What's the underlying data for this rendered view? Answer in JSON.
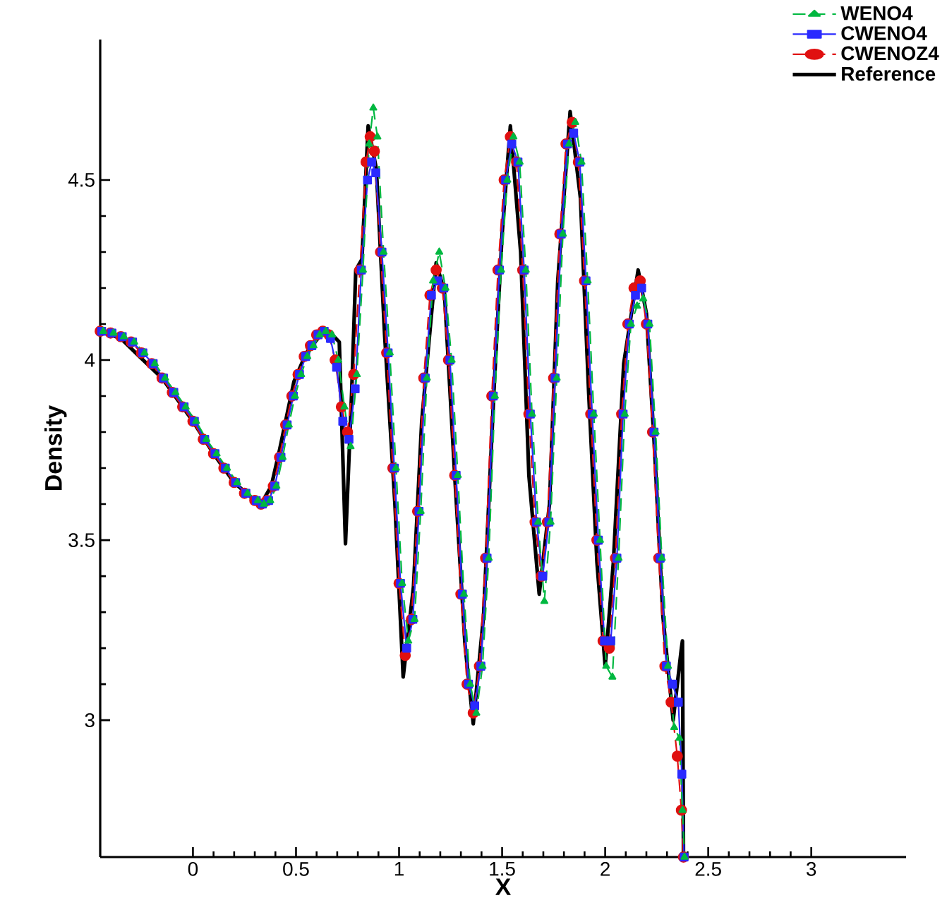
{
  "chart_data": {
    "type": "line",
    "xlabel": "X",
    "ylabel": "Density",
    "xlim": [
      -0.45,
      3.46
    ],
    "ylim": [
      2.62,
      4.89
    ],
    "xticks": [
      0,
      0.5,
      1,
      1.5,
      2,
      2.5,
      3
    ],
    "yticks": [
      3,
      3.5,
      4,
      4.5
    ],
    "grid": false,
    "legend": "top right",
    "x": [
      -0.45,
      -0.4,
      -0.35,
      -0.3,
      -0.25,
      -0.2,
      -0.15,
      -0.1,
      -0.05,
      0,
      0.05,
      0.1,
      0.15,
      0.2,
      0.25,
      0.3,
      0.33,
      0.36,
      0.39,
      0.42,
      0.45,
      0.48,
      0.51,
      0.54,
      0.57,
      0.6,
      0.63,
      0.66,
      0.69,
      0.72,
      0.75,
      0.78,
      0.81,
      0.84,
      0.86,
      0.88,
      0.91,
      0.94,
      0.97,
      1.0,
      1.03,
      1.06,
      1.09,
      1.12,
      1.15,
      1.18,
      1.21,
      1.24,
      1.27,
      1.3,
      1.33,
      1.36,
      1.39,
      1.42,
      1.45,
      1.48,
      1.51,
      1.54,
      1.57,
      1.6,
      1.63,
      1.66,
      1.69,
      1.72,
      1.75,
      1.78,
      1.81,
      1.84,
      1.87,
      1.9,
      1.93,
      1.96,
      1.99,
      2.02,
      2.05,
      2.08,
      2.11,
      2.14,
      2.17,
      2.2,
      2.23,
      2.26,
      2.29,
      2.32,
      2.35,
      2.37,
      2.38
    ],
    "series": [
      {
        "name": "WENO4",
        "color": "#00b840",
        "marker": "triangle",
        "line_style": "dashed",
        "x": [
          -0.435,
          -0.385,
          -0.335,
          -0.285,
          -0.235,
          -0.185,
          -0.135,
          -0.085,
          -0.035,
          0.015,
          0.065,
          0.115,
          0.165,
          0.215,
          0.265,
          0.315,
          0.345,
          0.375,
          0.405,
          0.435,
          0.465,
          0.495,
          0.525,
          0.555,
          0.585,
          0.615,
          0.645,
          0.675,
          0.705,
          0.735,
          0.765,
          0.795,
          0.825,
          0.855,
          0.875,
          0.895,
          0.925,
          0.955,
          0.985,
          1.015,
          1.045,
          1.075,
          1.105,
          1.135,
          1.165,
          1.195,
          1.225,
          1.255,
          1.285,
          1.315,
          1.345,
          1.375,
          1.405,
          1.435,
          1.465,
          1.495,
          1.525,
          1.555,
          1.585,
          1.615,
          1.645,
          1.675,
          1.705,
          1.735,
          1.765,
          1.795,
          1.825,
          1.855,
          1.885,
          1.915,
          1.945,
          1.975,
          2.005,
          2.035,
          2.065,
          2.095,
          2.125,
          2.155,
          2.185,
          2.215,
          2.245,
          2.275,
          2.305,
          2.335,
          2.36,
          2.375,
          2.385
        ],
        "values": [
          4.08,
          4.075,
          4.065,
          4.05,
          4.02,
          3.99,
          3.95,
          3.91,
          3.87,
          3.83,
          3.78,
          3.74,
          3.7,
          3.66,
          3.63,
          3.61,
          3.6,
          3.61,
          3.65,
          3.73,
          3.82,
          3.9,
          3.96,
          4.01,
          4.04,
          4.07,
          4.08,
          4.07,
          4.0,
          3.87,
          3.76,
          3.96,
          4.25,
          4.6,
          4.7,
          4.62,
          4.3,
          4.02,
          3.7,
          3.38,
          3.22,
          3.28,
          3.58,
          3.95,
          4.22,
          4.3,
          4.2,
          4.0,
          3.68,
          3.35,
          3.1,
          3.02,
          3.15,
          3.45,
          3.9,
          4.25,
          4.5,
          4.62,
          4.55,
          4.25,
          3.85,
          3.55,
          3.33,
          3.55,
          3.95,
          4.35,
          4.6,
          4.66,
          4.55,
          4.22,
          3.85,
          3.5,
          3.15,
          3.12,
          3.45,
          3.85,
          4.1,
          4.15,
          4.17,
          4.1,
          3.8,
          3.45,
          3.15,
          2.98,
          2.95,
          2.75,
          2.62
        ]
      },
      {
        "name": "CWENO4",
        "color": "#2a2aff",
        "marker": "square",
        "line_style": "solid",
        "x": [
          -0.443,
          -0.393,
          -0.343,
          -0.293,
          -0.243,
          -0.193,
          -0.143,
          -0.093,
          -0.043,
          0.007,
          0.057,
          0.107,
          0.157,
          0.207,
          0.257,
          0.307,
          0.337,
          0.367,
          0.397,
          0.427,
          0.457,
          0.487,
          0.517,
          0.547,
          0.577,
          0.607,
          0.637,
          0.667,
          0.697,
          0.727,
          0.757,
          0.787,
          0.817,
          0.847,
          0.867,
          0.887,
          0.917,
          0.947,
          0.977,
          1.007,
          1.037,
          1.067,
          1.097,
          1.127,
          1.157,
          1.187,
          1.217,
          1.247,
          1.277,
          1.307,
          1.337,
          1.367,
          1.397,
          1.427,
          1.457,
          1.487,
          1.517,
          1.547,
          1.577,
          1.607,
          1.637,
          1.667,
          1.697,
          1.727,
          1.757,
          1.787,
          1.817,
          1.847,
          1.877,
          1.907,
          1.937,
          1.967,
          1.997,
          2.027,
          2.057,
          2.087,
          2.117,
          2.147,
          2.177,
          2.207,
          2.237,
          2.267,
          2.297,
          2.327,
          2.355,
          2.372,
          2.383
        ],
        "values": [
          4.08,
          4.075,
          4.065,
          4.05,
          4.02,
          3.99,
          3.95,
          3.91,
          3.87,
          3.83,
          3.78,
          3.74,
          3.7,
          3.66,
          3.63,
          3.61,
          3.6,
          3.61,
          3.65,
          3.73,
          3.82,
          3.9,
          3.96,
          4.01,
          4.04,
          4.07,
          4.08,
          4.06,
          3.98,
          3.83,
          3.78,
          3.92,
          4.25,
          4.5,
          4.55,
          4.52,
          4.3,
          4.02,
          3.7,
          3.38,
          3.2,
          3.28,
          3.58,
          3.95,
          4.18,
          4.22,
          4.2,
          4.0,
          3.68,
          3.35,
          3.1,
          3.04,
          3.15,
          3.45,
          3.9,
          4.25,
          4.5,
          4.6,
          4.55,
          4.25,
          3.85,
          3.55,
          3.4,
          3.55,
          3.95,
          4.35,
          4.6,
          4.63,
          4.55,
          4.22,
          3.85,
          3.5,
          3.22,
          3.22,
          3.45,
          3.85,
          4.1,
          4.18,
          4.2,
          4.1,
          3.8,
          3.45,
          3.15,
          3.1,
          3.05,
          2.85,
          2.62
        ]
      },
      {
        "name": "CWENOZ4",
        "color": "#e01010",
        "marker": "circle",
        "line_style": "dashed",
        "values": [
          4.08,
          4.075,
          4.065,
          4.05,
          4.02,
          3.99,
          3.95,
          3.91,
          3.87,
          3.83,
          3.78,
          3.74,
          3.7,
          3.66,
          3.63,
          3.61,
          3.6,
          3.61,
          3.65,
          3.73,
          3.82,
          3.9,
          3.96,
          4.01,
          4.04,
          4.07,
          4.08,
          4.07,
          4.0,
          3.87,
          3.8,
          3.96,
          4.25,
          4.55,
          4.62,
          4.58,
          4.3,
          4.02,
          3.7,
          3.38,
          3.18,
          3.28,
          3.58,
          3.95,
          4.18,
          4.25,
          4.2,
          4.0,
          3.68,
          3.35,
          3.1,
          3.02,
          3.15,
          3.45,
          3.9,
          4.25,
          4.5,
          4.62,
          4.55,
          4.25,
          3.85,
          3.55,
          3.4,
          3.55,
          3.95,
          4.35,
          4.6,
          4.66,
          4.55,
          4.22,
          3.85,
          3.5,
          3.22,
          3.2,
          3.45,
          3.85,
          4.1,
          4.2,
          4.22,
          4.1,
          3.8,
          3.45,
          3.15,
          3.05,
          2.9,
          2.75,
          2.62
        ]
      },
      {
        "name": "Reference",
        "color": "#000000",
        "marker": "none",
        "line_style": "solid",
        "x": [
          -0.45,
          -0.35,
          -0.26,
          -0.15,
          0,
          0.1,
          0.2,
          0.28,
          0.33,
          0.38,
          0.42,
          0.49,
          0.55,
          0.62,
          0.66,
          0.71,
          0.74,
          0.77,
          0.79,
          0.82,
          0.85,
          0.89,
          0.93,
          0.98,
          1.02,
          1.07,
          1.11,
          1.18,
          1.22,
          1.27,
          1.32,
          1.36,
          1.41,
          1.46,
          1.5,
          1.54,
          1.59,
          1.63,
          1.68,
          1.73,
          1.77,
          1.83,
          1.88,
          1.92,
          1.96,
          2.0,
          2.04,
          2.09,
          2.16,
          2.2,
          2.24,
          2.28,
          2.33,
          2.37,
          2.375,
          2.38
        ],
        "values": [
          4.08,
          4.06,
          4.01,
          3.95,
          3.83,
          3.74,
          3.66,
          3.62,
          3.6,
          3.65,
          3.75,
          3.94,
          4.02,
          4.07,
          4.08,
          4.05,
          3.49,
          3.91,
          4.25,
          4.28,
          4.65,
          4.53,
          4.07,
          3.6,
          3.12,
          3.37,
          3.83,
          4.27,
          4.19,
          3.68,
          3.21,
          2.99,
          3.29,
          3.91,
          4.35,
          4.65,
          4.3,
          3.68,
          3.35,
          3.6,
          4.22,
          4.69,
          4.45,
          3.91,
          3.44,
          3.15,
          3.44,
          3.99,
          4.25,
          4.13,
          3.75,
          3.29,
          3.0,
          3.2,
          3.22,
          2.62
        ]
      }
    ]
  }
}
